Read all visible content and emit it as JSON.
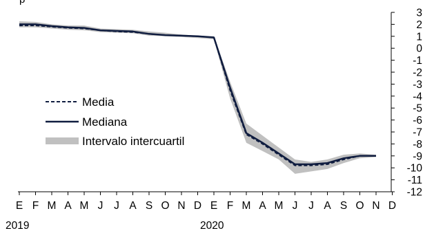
{
  "top_fragment": "p",
  "chart_data": {
    "type": "line",
    "x_labels": [
      "E",
      "F",
      "M",
      "A",
      "M",
      "J",
      "J",
      "A",
      "S",
      "O",
      "N",
      "D",
      "E",
      "F",
      "M",
      "A",
      "M",
      "J",
      "J",
      "A",
      "S",
      "O",
      "N",
      "D"
    ],
    "year_labels": [
      {
        "index": 0,
        "label": "2019"
      },
      {
        "index": 12,
        "label": "2020"
      }
    ],
    "y_axis": {
      "position": "right",
      "min": -12,
      "max": 3,
      "step": 1,
      "tick_labels": [
        "3",
        "2",
        "1",
        "0",
        "-1",
        "-2",
        "-3",
        "-4",
        "-5",
        "-6",
        "-7",
        "-8",
        "-9",
        "-10",
        "-11",
        "-12"
      ]
    },
    "series": [
      {
        "name": "Media",
        "style": "dashed",
        "color": "#0f1c3f",
        "values": [
          1.9,
          1.9,
          1.8,
          1.7,
          1.65,
          1.5,
          1.4,
          1.35,
          1.2,
          1.1,
          1.05,
          1.0,
          0.9,
          -3.5,
          -7.2,
          -8.0,
          -8.9,
          -9.8,
          -9.8,
          -9.7,
          -9.3,
          -9.0,
          -9.0
        ]
      },
      {
        "name": "Mediana",
        "style": "solid",
        "color": "#0f1c3f",
        "values": [
          2.0,
          2.0,
          1.85,
          1.75,
          1.7,
          1.5,
          1.45,
          1.4,
          1.2,
          1.1,
          1.05,
          1.0,
          0.9,
          -3.3,
          -7.1,
          -7.9,
          -8.8,
          -9.7,
          -9.7,
          -9.6,
          -9.2,
          -9.0,
          -9.0
        ]
      }
    ],
    "band": {
      "name": "Intervalo intercuartil",
      "color": "#c0c0c0",
      "upper": [
        2.25,
        2.2,
        2.0,
        1.9,
        1.9,
        1.65,
        1.6,
        1.55,
        1.4,
        1.3,
        1.15,
        1.05,
        1.0,
        -2.8,
        -6.3,
        -7.3,
        -8.3,
        -9.3,
        -9.5,
        -9.3,
        -8.9,
        -8.8,
        -8.9
      ],
      "lower": [
        1.75,
        1.75,
        1.65,
        1.55,
        1.5,
        1.35,
        1.3,
        1.25,
        1.05,
        1.0,
        0.95,
        0.85,
        0.75,
        -4.2,
        -7.9,
        -8.6,
        -9.3,
        -10.5,
        -10.3,
        -10.1,
        -9.6,
        -9.2,
        -9.1
      ]
    },
    "legend": {
      "placement": "left-middle",
      "entries": [
        {
          "label": "Media",
          "kind": "dashed"
        },
        {
          "label": "Mediana",
          "kind": "solid"
        },
        {
          "label": "Intervalo intercuartil",
          "kind": "band"
        }
      ]
    }
  }
}
